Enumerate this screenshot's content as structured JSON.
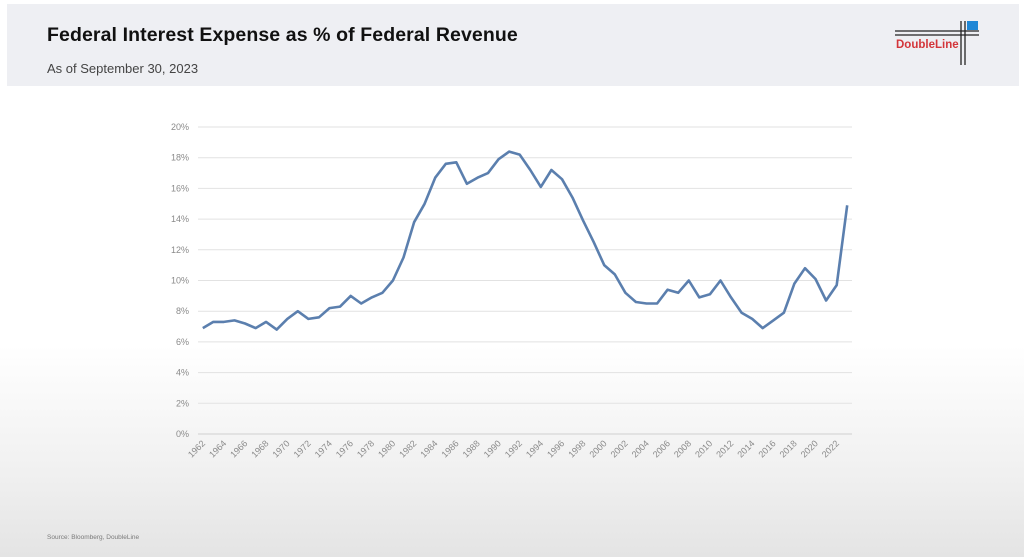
{
  "header": {
    "title": "Federal Interest Expense as % of Federal Revenue",
    "subtitle": "As of September 30, 2023",
    "logo_text": "DoubleLine",
    "logo_icon": "doubleline-crosshair-logo",
    "logo_accent_color": "#1f87d6",
    "logo_text_color": "#d3353a"
  },
  "footer": {
    "source": "Source: Bloomberg, DoubleLine"
  },
  "chart_data": {
    "type": "line",
    "title": "Federal Interest Expense as % of Federal Revenue",
    "xlabel": "",
    "ylabel": "",
    "ylim": [
      0,
      20
    ],
    "yticks": [
      "0%",
      "2%",
      "4%",
      "6%",
      "8%",
      "10%",
      "12%",
      "14%",
      "16%",
      "18%",
      "20%"
    ],
    "xtick_labels": [
      "1962",
      "1964",
      "1966",
      "1968",
      "1970",
      "1972",
      "1974",
      "1976",
      "1978",
      "1980",
      "1982",
      "1984",
      "1986",
      "1988",
      "1990",
      "1992",
      "1994",
      "1996",
      "1998",
      "2000",
      "2002",
      "2004",
      "2006",
      "2008",
      "2010",
      "2012",
      "2014",
      "2016",
      "2018",
      "2020",
      "2022"
    ],
    "grid": "horizontal",
    "legend": "none",
    "line_color": "#5b7fae",
    "series": [
      {
        "name": "Interest Expense % of Revenue",
        "x": [
          1962,
          1963,
          1964,
          1965,
          1966,
          1967,
          1968,
          1969,
          1970,
          1971,
          1972,
          1973,
          1974,
          1975,
          1976,
          1977,
          1978,
          1979,
          1980,
          1981,
          1982,
          1983,
          1984,
          1985,
          1986,
          1987,
          1988,
          1989,
          1990,
          1991,
          1992,
          1993,
          1994,
          1995,
          1996,
          1997,
          1998,
          1999,
          2000,
          2001,
          2002,
          2003,
          2004,
          2005,
          2006,
          2007,
          2008,
          2009,
          2010,
          2011,
          2012,
          2013,
          2014,
          2015,
          2016,
          2017,
          2018,
          2019,
          2020,
          2021,
          2022,
          2023
        ],
        "values": [
          6.9,
          7.3,
          7.3,
          7.4,
          7.2,
          6.9,
          7.3,
          6.8,
          7.5,
          8.0,
          7.5,
          7.6,
          8.2,
          8.3,
          9.0,
          8.5,
          8.9,
          9.2,
          10.0,
          11.5,
          13.8,
          15.0,
          16.7,
          17.6,
          17.7,
          16.3,
          16.7,
          17.0,
          17.9,
          18.4,
          18.2,
          17.2,
          16.1,
          17.2,
          16.6,
          15.4,
          13.9,
          12.5,
          11.0,
          10.4,
          9.2,
          8.6,
          8.5,
          8.5,
          9.4,
          9.2,
          10.0,
          8.9,
          9.1,
          10.0,
          8.9,
          7.9,
          7.5,
          6.9,
          7.4,
          7.9,
          9.8,
          10.8,
          10.1,
          8.7,
          9.7,
          14.9
        ]
      }
    ]
  }
}
